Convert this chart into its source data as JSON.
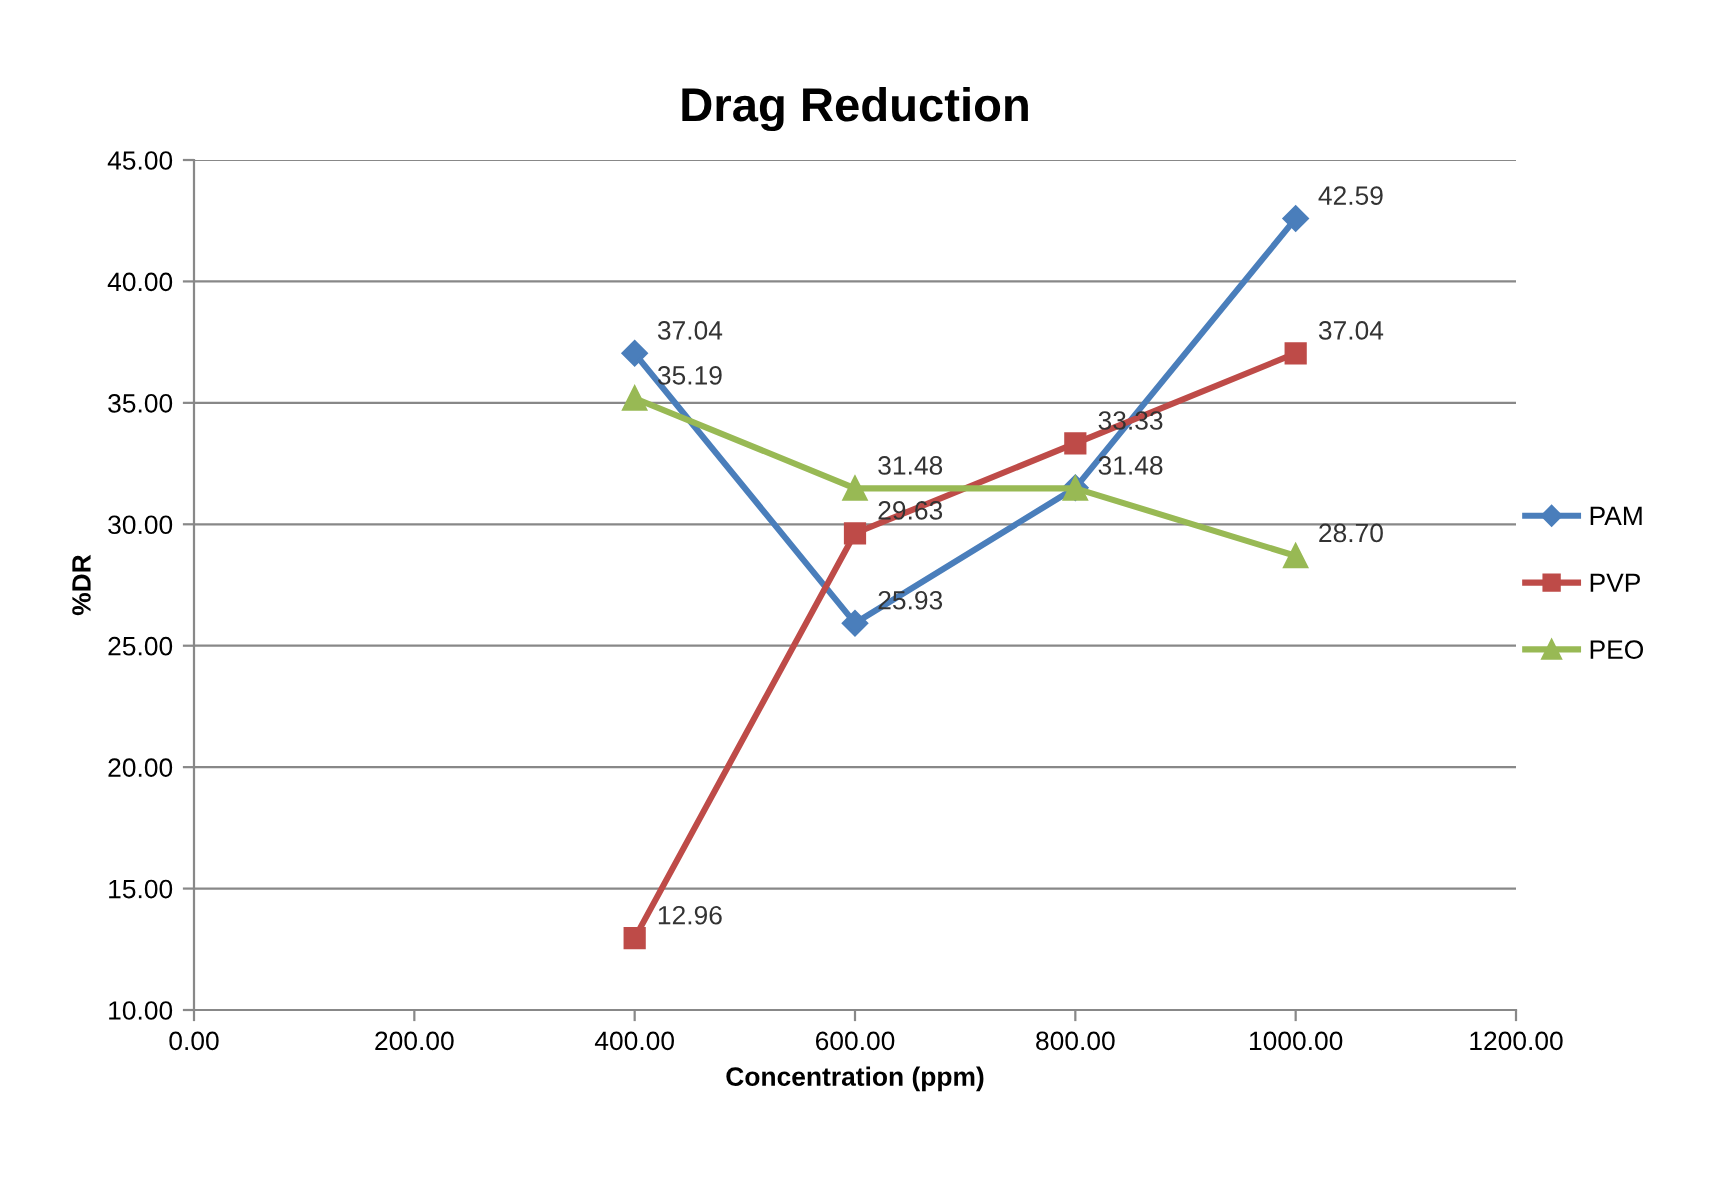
{
  "chart_data": {
    "type": "line",
    "title": "Drag Reduction",
    "xlabel": "Concentration (ppm)",
    "ylabel": "%DR",
    "xlim": [
      0,
      1200
    ],
    "xticks": [
      {
        "value": 0,
        "label": "0.00"
      },
      {
        "value": 200,
        "label": "200.00"
      },
      {
        "value": 400,
        "label": "400.00"
      },
      {
        "value": 600,
        "label": "600.00"
      },
      {
        "value": 800,
        "label": "800.00"
      },
      {
        "value": 1000,
        "label": "1000.00"
      },
      {
        "value": 1200,
        "label": "1200.00"
      }
    ],
    "ylim": [
      10,
      45
    ],
    "yticks": [
      {
        "value": 10,
        "label": "10.00"
      },
      {
        "value": 15,
        "label": "15.00"
      },
      {
        "value": 20,
        "label": "20.00"
      },
      {
        "value": 25,
        "label": "25.00"
      },
      {
        "value": 30,
        "label": "30.00"
      },
      {
        "value": 35,
        "label": "35.00"
      },
      {
        "value": 40,
        "label": "40.00"
      },
      {
        "value": 45,
        "label": "45.00"
      }
    ],
    "x": [
      400,
      600,
      800,
      1000
    ],
    "grid": "y",
    "legend": "right",
    "series": [
      {
        "name": "PAM",
        "color": "#4a7ebb",
        "marker": "diamond",
        "values": [
          37.04,
          25.93,
          31.5,
          42.59
        ],
        "value_labels": [
          "37.04",
          "25.93",
          null,
          "42.59"
        ]
      },
      {
        "name": "PVP",
        "color": "#be4b48",
        "marker": "square",
        "values": [
          12.96,
          29.63,
          33.33,
          37.04
        ],
        "value_labels": [
          "12.96",
          "29.63",
          "33.33",
          "37.04"
        ]
      },
      {
        "name": "PEO",
        "color": "#98b954",
        "marker": "triangle",
        "values": [
          35.19,
          31.48,
          31.48,
          28.7
        ],
        "value_labels": [
          "35.19",
          "31.48",
          "31.48",
          "28.70"
        ]
      }
    ]
  }
}
